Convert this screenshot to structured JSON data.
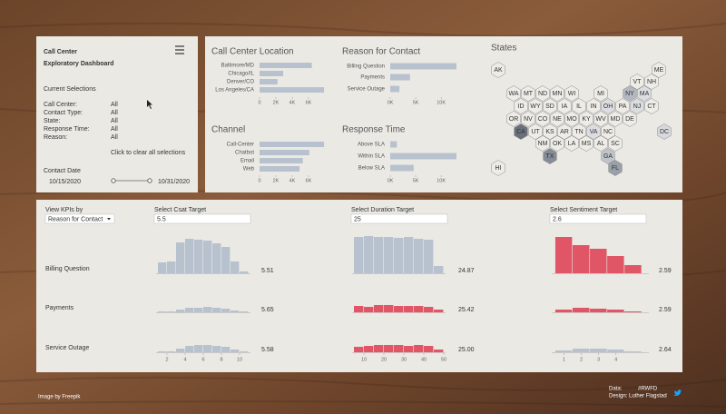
{
  "header": {
    "title_lines": [
      "Call Center",
      "Exploratory Dashboard"
    ]
  },
  "selections": {
    "heading": "Current Selections",
    "rows": [
      [
        "Call Center:",
        "All"
      ],
      [
        "Contact Type:",
        "All"
      ],
      [
        "State:",
        "All"
      ],
      [
        "Response Time:",
        "All"
      ],
      [
        "Reason:",
        "All"
      ]
    ],
    "clear": "Click to clear all selections",
    "date_label": "Contact Date",
    "date_from": "10/15/2020",
    "date_to": "10/31/2020"
  },
  "kpi_panel": {
    "view_label": "View KPIs by",
    "view_value": "Reason for Contact",
    "targets": [
      {
        "label": "Select Csat Target",
        "value": 5.5
      },
      {
        "label": "Select Duration Target",
        "value": 25
      },
      {
        "label": "Select Sentiment Target",
        "value": 2.6
      }
    ],
    "rows": [
      "Billing Question",
      "Payments",
      "Service Outage"
    ]
  },
  "footer": {
    "credit": "Image by Freepik",
    "data_label": "Data:",
    "data_value": "#RWFD",
    "design": "Design: Luther Flagstad"
  },
  "chart_data": [
    {
      "type": "hbar",
      "title": "Call Center Location",
      "categories": [
        "Baltimore/MD",
        "Chicago/IL",
        "Denver/CO",
        "Los Angeles/CA"
      ],
      "values": [
        6400,
        2900,
        2200,
        7900
      ],
      "color": "#b8c2cf",
      "xlim": [
        0,
        8000
      ],
      "xticks": [
        0,
        {
          "value": 2000,
          "label": "2K"
        },
        {
          "value": 4000,
          "label": "4K"
        },
        {
          "value": 6000,
          "label": "6K"
        }
      ]
    },
    {
      "type": "hbar",
      "title": "Reason for Contact",
      "categories": [
        "Billing Question",
        "Payments",
        "Service Outage"
      ],
      "values": [
        13000,
        3900,
        1800
      ],
      "color": "#b8c2cf",
      "xlim": [
        0,
        13000
      ],
      "xticks": [
        {
          "value": 0,
          "label": "0K"
        },
        {
          "value": 5000,
          "label": "5K"
        },
        {
          "value": 10000,
          "label": "10K"
        }
      ]
    },
    {
      "type": "hbar",
      "title": "Channel",
      "categories": [
        "Call-Center",
        "Chatbot",
        "Email",
        "Web"
      ],
      "values": [
        7900,
        6100,
        5300,
        4900
      ],
      "color": "#b8c2cf",
      "xlim": [
        0,
        8000
      ],
      "xticks": [
        0,
        {
          "value": 2000,
          "label": "2K"
        },
        {
          "value": 4000,
          "label": "4K"
        },
        {
          "value": 6000,
          "label": "6K"
        }
      ]
    },
    {
      "type": "hbar",
      "title": "Response Time",
      "categories": [
        "Above SLA",
        "Within SLA",
        "Below SLA"
      ],
      "values": [
        1300,
        13000,
        4600
      ],
      "color": "#b8c2cf",
      "xlim": [
        0,
        13000
      ],
      "xticks": [
        {
          "value": 0,
          "label": "0K"
        },
        {
          "value": 5000,
          "label": "5K"
        },
        {
          "value": 10000,
          "label": "10K"
        }
      ]
    },
    {
      "type": "hexmap",
      "title": "States",
      "states": [
        {
          "label": "AK",
          "color": "#eeece7"
        },
        {
          "label": "ME",
          "color": "#eeece7"
        },
        {
          "label": "VT",
          "color": "#eeece7"
        },
        {
          "label": "NH",
          "color": "#eeece7"
        },
        {
          "label": "WA",
          "color": "#eeece7"
        },
        {
          "label": "MT",
          "color": "#eeece7"
        },
        {
          "label": "ND",
          "color": "#eeece7"
        },
        {
          "label": "MN",
          "color": "#eeece7"
        },
        {
          "label": "WI",
          "color": "#eeece7"
        },
        {
          "label": "MI",
          "color": "#eeece7"
        },
        {
          "label": "NY",
          "color": "#b3b8c0"
        },
        {
          "label": "MA",
          "color": "#dcdde0"
        },
        {
          "label": "ID",
          "color": "#eeece7"
        },
        {
          "label": "WY",
          "color": "#eeece7"
        },
        {
          "label": "SD",
          "color": "#eeece7"
        },
        {
          "label": "IA",
          "color": "#eeece7"
        },
        {
          "label": "IL",
          "color": "#eeece7"
        },
        {
          "label": "IN",
          "color": "#eeece7"
        },
        {
          "label": "OH",
          "color": "#dcdde0"
        },
        {
          "label": "PA",
          "color": "#eeece7"
        },
        {
          "label": "NJ",
          "color": "#dcdde0"
        },
        {
          "label": "CT",
          "color": "#eeece7"
        },
        {
          "label": "OR",
          "color": "#eeece7"
        },
        {
          "label": "NV",
          "color": "#eeece7"
        },
        {
          "label": "CO",
          "color": "#eeece7"
        },
        {
          "label": "NE",
          "color": "#eeece7"
        },
        {
          "label": "MO",
          "color": "#eeece7"
        },
        {
          "label": "KY",
          "color": "#eeece7"
        },
        {
          "label": "WV",
          "color": "#eeece7"
        },
        {
          "label": "MD",
          "color": "#eeece7"
        },
        {
          "label": "DE",
          "color": "#eeece7"
        },
        {
          "label": "CA",
          "color": "#6b717b"
        },
        {
          "label": "UT",
          "color": "#eeece7"
        },
        {
          "label": "KS",
          "color": "#eeece7"
        },
        {
          "label": "AR",
          "color": "#eeece7"
        },
        {
          "label": "TN",
          "color": "#eeece7"
        },
        {
          "label": "VA",
          "color": "#dcdde0"
        },
        {
          "label": "NC",
          "color": "#eeece7"
        },
        {
          "label": "DC",
          "color": "#d6d8dc"
        },
        {
          "label": "NM",
          "color": "#eeece7"
        },
        {
          "label": "OK",
          "color": "#eeece7"
        },
        {
          "label": "LA",
          "color": "#eeece7"
        },
        {
          "label": "MS",
          "color": "#eeece7"
        },
        {
          "label": "AL",
          "color": "#eeece7"
        },
        {
          "label": "SC",
          "color": "#eeece7"
        },
        {
          "label": "TX",
          "color": "#868c96"
        },
        {
          "label": "GA",
          "color": "#bfc3ca"
        },
        {
          "label": "HI",
          "color": "#eeece7"
        },
        {
          "label": "FL",
          "color": "#9aa0a9"
        }
      ]
    },
    {
      "type": "histogram",
      "bins": [
        1,
        2,
        3,
        4,
        5,
        6,
        7,
        8,
        9,
        10,
        11
      ],
      "values": [
        12,
        13,
        34,
        38,
        37,
        36,
        33,
        29,
        13,
        2
      ],
      "color": "#b8c2cf",
      "xlim": [
        1,
        11
      ],
      "average": 5.51
    },
    {
      "type": "histogram",
      "bins": [
        5,
        10,
        15,
        20,
        25,
        30,
        35,
        40,
        45,
        50
      ],
      "values": [
        40,
        41,
        40,
        40,
        39,
        40,
        38,
        37,
        8
      ],
      "color": "#b8c2cf",
      "xlim": [
        5,
        50
      ],
      "average": 24.87
    },
    {
      "type": "histogram",
      "bins": [
        0.5,
        1.5,
        2.5,
        3.5,
        4.5,
        5.5
      ],
      "values": [
        40,
        31,
        27,
        19,
        9
      ],
      "color": "#e05666",
      "xlim": [
        0.4,
        5.8
      ],
      "average": 2.59
    },
    {
      "type": "histogram",
      "bins": [
        1,
        2,
        3,
        4,
        5,
        6,
        7,
        8,
        9,
        10,
        11
      ],
      "values": [
        1,
        1,
        3,
        5,
        5,
        6,
        5,
        4,
        2,
        1
      ],
      "color": "#b8c2cf",
      "xlim": [
        1,
        11
      ],
      "average": 5.65
    },
    {
      "type": "histogram",
      "bins": [
        5,
        10,
        15,
        20,
        25,
        30,
        35,
        40,
        45,
        50
      ],
      "values": [
        7,
        6,
        8,
        8,
        7,
        7,
        7,
        6,
        3
      ],
      "color": "#e05666",
      "xlim": [
        5,
        50
      ],
      "average": 25.42
    },
    {
      "type": "histogram",
      "bins": [
        0.5,
        1.5,
        2.5,
        3.5,
        4.5,
        5.5
      ],
      "values": [
        3,
        5,
        4,
        3,
        1
      ],
      "color": "#e05666",
      "xlim": [
        0.4,
        5.8
      ],
      "average": 2.59
    },
    {
      "type": "histogram",
      "bins": [
        1,
        2,
        3,
        4,
        5,
        6,
        7,
        8,
        9,
        10,
        11
      ],
      "values": [
        1,
        1,
        4,
        7,
        8,
        8,
        7,
        6,
        3,
        1
      ],
      "color": "#b8c2cf",
      "xlim": [
        1,
        11
      ],
      "xticks": [
        2,
        4,
        6,
        8,
        10
      ],
      "average": 5.58
    },
    {
      "type": "histogram",
      "bins": [
        5,
        10,
        15,
        20,
        25,
        30,
        35,
        40,
        45,
        50
      ],
      "values": [
        6,
        7,
        8,
        8,
        8,
        7,
        8,
        7,
        3
      ],
      "color": "#e05666",
      "xlim": [
        5,
        50
      ],
      "xticks": [
        10,
        20,
        30,
        40,
        50
      ],
      "average": {
        "value": 25,
        "label": "25.00"
      }
    },
    {
      "type": "histogram",
      "bins": [
        0.5,
        1.5,
        2.5,
        3.5,
        4.5,
        5.5
      ],
      "values": [
        2,
        4,
        4,
        3,
        1
      ],
      "color": "#b8c2cf",
      "xlim": [
        0.4,
        5.8
      ],
      "xticks": [
        1,
        2,
        3,
        4
      ],
      "average": 2.64
    }
  ]
}
